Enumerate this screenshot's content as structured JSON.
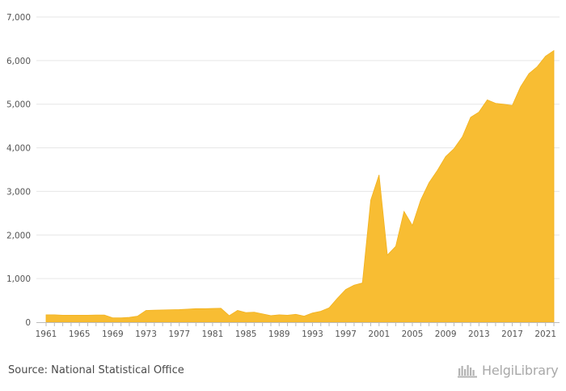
{
  "chart_data": {
    "type": "area",
    "title": "",
    "xlabel": "",
    "ylabel": "",
    "ylim": [
      0,
      7000
    ],
    "xlim": [
      1961,
      2022
    ],
    "grid": "horizontal",
    "legend": "none",
    "fill_color": "#F8BD33",
    "yticks": [
      0,
      1000,
      2000,
      3000,
      4000,
      5000,
      6000,
      7000
    ],
    "ytick_labels": [
      "0",
      "1,000",
      "2,000",
      "3,000",
      "4,000",
      "5,000",
      "6,000",
      "7,000"
    ],
    "xticks": [
      1961,
      1965,
      1969,
      1973,
      1977,
      1981,
      1985,
      1989,
      1993,
      1997,
      2001,
      2005,
      2009,
      2013,
      2017,
      2021
    ],
    "xtick_labels": [
      "1961",
      "1965",
      "1969",
      "1973",
      "1977",
      "1981",
      "1985",
      "1989",
      "1993",
      "1997",
      "2001",
      "2005",
      "2009",
      "2013",
      "2017",
      "2021"
    ],
    "x": [
      1961,
      1962,
      1963,
      1964,
      1965,
      1966,
      1967,
      1968,
      1969,
      1970,
      1971,
      1972,
      1973,
      1974,
      1975,
      1976,
      1977,
      1978,
      1979,
      1980,
      1981,
      1982,
      1983,
      1984,
      1985,
      1986,
      1987,
      1988,
      1989,
      1990,
      1991,
      1992,
      1993,
      1994,
      1995,
      1996,
      1997,
      1998,
      1999,
      2000,
      2001,
      2002,
      2003,
      2004,
      2005,
      2006,
      2007,
      2008,
      2009,
      2010,
      2011,
      2012,
      2013,
      2014,
      2015,
      2016,
      2017,
      2018,
      2019,
      2020,
      2021,
      2022
    ],
    "values": [
      170,
      170,
      160,
      160,
      160,
      160,
      165,
      165,
      100,
      100,
      110,
      140,
      270,
      275,
      280,
      285,
      290,
      300,
      310,
      310,
      315,
      320,
      150,
      270,
      220,
      230,
      190,
      150,
      170,
      160,
      180,
      140,
      210,
      250,
      330,
      550,
      750,
      850,
      900,
      2800,
      3380,
      1540,
      1740,
      2540,
      2220,
      2800,
      3200,
      3480,
      3800,
      3980,
      4250,
      4700,
      4820,
      5100,
      5020,
      5000,
      4970,
      5400,
      5700,
      5860,
      6100,
      6230
    ]
  },
  "footer": {
    "source": "Source: National Statistical Office",
    "logo": "HelgiLibrary"
  }
}
